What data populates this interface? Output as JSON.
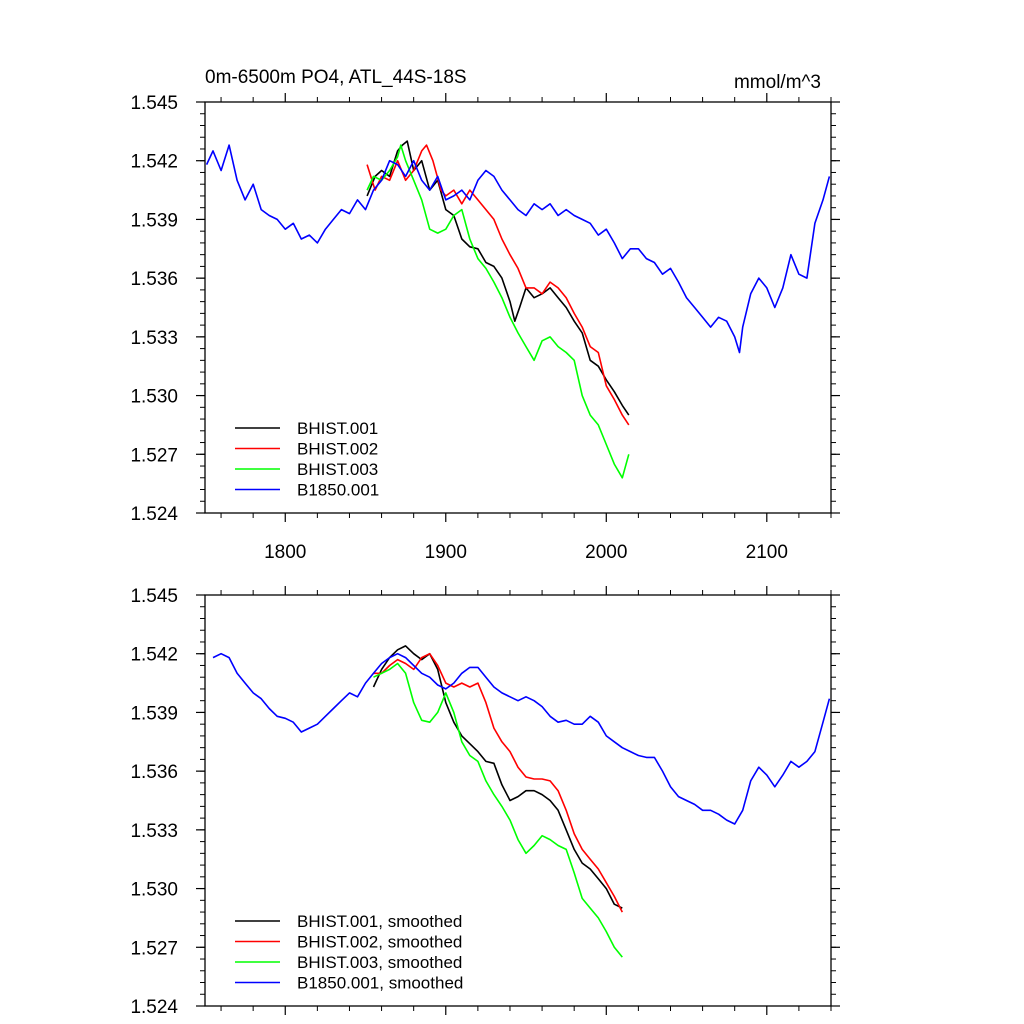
{
  "chart_data": [
    {
      "type": "line",
      "title": "0m-6500m PO4, ATL_44S-18S",
      "units": "mmol/m^3",
      "xlim": [
        1750,
        2140
      ],
      "ylim": [
        1.524,
        1.545
      ],
      "xticks": [
        1800,
        1900,
        2000,
        2100
      ],
      "yticks": [
        1.524,
        1.527,
        1.53,
        1.533,
        1.536,
        1.539,
        1.542,
        1.545
      ],
      "ytick_labels": [
        "1.524",
        "1.527",
        "1.530",
        "1.533",
        "1.536",
        "1.539",
        "1.542",
        "1.545"
      ],
      "xtick_labels": [
        "1800",
        "1900",
        "2000",
        "2100"
      ],
      "legend_position": "bottom-left",
      "series": [
        {
          "name": "BHIST.001",
          "color": "#000000",
          "x": [
            1851,
            1856,
            1860,
            1865,
            1870,
            1873,
            1876,
            1880,
            1885,
            1890,
            1895,
            1900,
            1905,
            1910,
            1915,
            1920,
            1925,
            1930,
            1935,
            1940,
            1943,
            1946,
            1950,
            1955,
            1960,
            1965,
            1970,
            1975,
            1980,
            1985,
            1990,
            1995,
            2000,
            2005,
            2010,
            2014
          ],
          "y": [
            1.5402,
            1.5412,
            1.5415,
            1.5412,
            1.5425,
            1.5428,
            1.543,
            1.5415,
            1.542,
            1.5405,
            1.541,
            1.5395,
            1.5392,
            1.538,
            1.5376,
            1.5375,
            1.5368,
            1.5366,
            1.536,
            1.5348,
            1.5338,
            1.5345,
            1.5355,
            1.535,
            1.5352,
            1.5355,
            1.535,
            1.5345,
            1.5338,
            1.5332,
            1.5318,
            1.5315,
            1.5308,
            1.5302,
            1.5295,
            1.529
          ]
        },
        {
          "name": "BHIST.002",
          "color": "#ff0000",
          "x": [
            1851,
            1856,
            1860,
            1865,
            1870,
            1875,
            1880,
            1885,
            1888,
            1892,
            1897,
            1900,
            1905,
            1910,
            1915,
            1920,
            1925,
            1930,
            1935,
            1940,
            1945,
            1950,
            1955,
            1960,
            1965,
            1970,
            1975,
            1980,
            1985,
            1990,
            1995,
            2000,
            2005,
            2010,
            2014
          ],
          "y": [
            1.5418,
            1.5405,
            1.5412,
            1.541,
            1.542,
            1.541,
            1.5415,
            1.5425,
            1.5428,
            1.542,
            1.5405,
            1.5402,
            1.5405,
            1.5398,
            1.5405,
            1.54,
            1.5395,
            1.539,
            1.538,
            1.5372,
            1.5365,
            1.5355,
            1.5355,
            1.5352,
            1.5358,
            1.5355,
            1.535,
            1.5342,
            1.5335,
            1.5325,
            1.5322,
            1.5305,
            1.5298,
            1.529,
            1.5285
          ]
        },
        {
          "name": "BHIST.003",
          "color": "#00ff00",
          "x": [
            1851,
            1855,
            1860,
            1865,
            1870,
            1872,
            1875,
            1880,
            1885,
            1890,
            1895,
            1900,
            1905,
            1910,
            1915,
            1920,
            1925,
            1930,
            1935,
            1940,
            1945,
            1950,
            1955,
            1960,
            1965,
            1970,
            1975,
            1980,
            1985,
            1990,
            1995,
            2000,
            2005,
            2010,
            2014
          ],
          "y": [
            1.5405,
            1.5412,
            1.541,
            1.5415,
            1.5422,
            1.5428,
            1.542,
            1.541,
            1.54,
            1.5385,
            1.5383,
            1.5385,
            1.5392,
            1.5395,
            1.538,
            1.537,
            1.5365,
            1.5358,
            1.535,
            1.534,
            1.5332,
            1.5325,
            1.5318,
            1.5328,
            1.533,
            1.5325,
            1.5322,
            1.5318,
            1.53,
            1.529,
            1.5285,
            1.5275,
            1.5265,
            1.5258,
            1.527
          ]
        },
        {
          "name": "B1850.001",
          "color": "#0000ff",
          "x": [
            1751,
            1755,
            1760,
            1765,
            1770,
            1775,
            1780,
            1785,
            1790,
            1795,
            1800,
            1805,
            1810,
            1815,
            1820,
            1825,
            1830,
            1835,
            1840,
            1845,
            1850,
            1855,
            1860,
            1865,
            1870,
            1875,
            1880,
            1885,
            1890,
            1895,
            1900,
            1905,
            1910,
            1915,
            1920,
            1925,
            1930,
            1935,
            1940,
            1945,
            1950,
            1955,
            1960,
            1965,
            1970,
            1975,
            1980,
            1985,
            1990,
            1995,
            2000,
            2005,
            2010,
            2015,
            2020,
            2025,
            2030,
            2035,
            2040,
            2045,
            2050,
            2055,
            2060,
            2065,
            2070,
            2075,
            2080,
            2083,
            2085,
            2090,
            2095,
            2100,
            2105,
            2110,
            2115,
            2120,
            2125,
            2130,
            2135,
            2139
          ],
          "y": [
            1.5418,
            1.5425,
            1.5415,
            1.5428,
            1.541,
            1.54,
            1.5408,
            1.5395,
            1.5392,
            1.539,
            1.5385,
            1.5388,
            1.538,
            1.5382,
            1.5378,
            1.5385,
            1.539,
            1.5395,
            1.5393,
            1.54,
            1.5395,
            1.5405,
            1.541,
            1.542,
            1.5418,
            1.5412,
            1.542,
            1.541,
            1.5405,
            1.5412,
            1.54,
            1.5402,
            1.5405,
            1.54,
            1.541,
            1.5415,
            1.5412,
            1.5405,
            1.54,
            1.5395,
            1.5392,
            1.5398,
            1.5395,
            1.5398,
            1.5392,
            1.5395,
            1.5392,
            1.539,
            1.5388,
            1.5382,
            1.5385,
            1.5378,
            1.537,
            1.5375,
            1.5375,
            1.537,
            1.5368,
            1.5362,
            1.5365,
            1.5358,
            1.535,
            1.5345,
            1.534,
            1.5335,
            1.534,
            1.5338,
            1.533,
            1.5322,
            1.5335,
            1.5352,
            1.536,
            1.5355,
            1.5345,
            1.5355,
            1.5372,
            1.5362,
            1.536,
            1.5388,
            1.54,
            1.5412
          ]
        }
      ]
    },
    {
      "type": "line",
      "title": "",
      "xlim": [
        1750,
        2140
      ],
      "ylim": [
        1.524,
        1.545
      ],
      "xticks": [
        1800,
        1900,
        2000,
        2100
      ],
      "yticks": [
        1.524,
        1.527,
        1.53,
        1.533,
        1.536,
        1.539,
        1.542,
        1.545
      ],
      "ytick_labels": [
        "1.524",
        "1.527",
        "1.530",
        "1.533",
        "1.536",
        "1.539",
        "1.542",
        "1.545"
      ],
      "legend_position": "bottom-left",
      "series": [
        {
          "name": "BHIST.001, smoothed",
          "color": "#000000",
          "x": [
            1855,
            1860,
            1865,
            1870,
            1875,
            1880,
            1885,
            1890,
            1895,
            1900,
            1905,
            1910,
            1915,
            1920,
            1925,
            1930,
            1935,
            1940,
            1945,
            1950,
            1955,
            1960,
            1965,
            1970,
            1975,
            1980,
            1985,
            1990,
            1995,
            2000,
            2005,
            2010
          ],
          "y": [
            1.5403,
            1.5412,
            1.5418,
            1.5422,
            1.5424,
            1.542,
            1.5417,
            1.542,
            1.5412,
            1.5395,
            1.5385,
            1.5378,
            1.5374,
            1.537,
            1.5365,
            1.5364,
            1.5353,
            1.5345,
            1.5347,
            1.535,
            1.535,
            1.5348,
            1.5345,
            1.534,
            1.533,
            1.532,
            1.5313,
            1.531,
            1.5305,
            1.53,
            1.5292,
            1.529
          ]
        },
        {
          "name": "BHIST.002, smoothed",
          "color": "#ff0000",
          "x": [
            1855,
            1860,
            1865,
            1870,
            1875,
            1880,
            1885,
            1890,
            1895,
            1900,
            1905,
            1910,
            1915,
            1920,
            1925,
            1930,
            1935,
            1940,
            1945,
            1950,
            1955,
            1960,
            1965,
            1970,
            1975,
            1980,
            1985,
            1990,
            1995,
            2000,
            2005,
            2010
          ],
          "y": [
            1.541,
            1.541,
            1.5414,
            1.5417,
            1.5415,
            1.5412,
            1.5418,
            1.542,
            1.5414,
            1.5405,
            1.5403,
            1.5405,
            1.5403,
            1.5405,
            1.5395,
            1.5382,
            1.5375,
            1.537,
            1.5362,
            1.5357,
            1.5356,
            1.5356,
            1.5355,
            1.535,
            1.534,
            1.5328,
            1.532,
            1.5315,
            1.531,
            1.5303,
            1.5296,
            1.5288
          ]
        },
        {
          "name": "BHIST.003, smoothed",
          "color": "#00ff00",
          "x": [
            1855,
            1860,
            1865,
            1870,
            1875,
            1880,
            1885,
            1890,
            1895,
            1900,
            1905,
            1910,
            1915,
            1920,
            1925,
            1930,
            1935,
            1940,
            1945,
            1950,
            1955,
            1960,
            1965,
            1970,
            1975,
            1980,
            1985,
            1990,
            1995,
            2000,
            2005,
            2010
          ],
          "y": [
            1.5408,
            1.541,
            1.5412,
            1.5415,
            1.541,
            1.5395,
            1.5386,
            1.5385,
            1.539,
            1.54,
            1.539,
            1.5375,
            1.5368,
            1.5365,
            1.5355,
            1.5348,
            1.5342,
            1.5335,
            1.5325,
            1.5318,
            1.5322,
            1.5327,
            1.5325,
            1.5322,
            1.532,
            1.5308,
            1.5295,
            1.529,
            1.5285,
            1.5278,
            1.527,
            1.5265
          ]
        },
        {
          "name": "B1850.001, smoothed",
          "color": "#0000ff",
          "x": [
            1755,
            1760,
            1765,
            1770,
            1775,
            1780,
            1785,
            1790,
            1795,
            1800,
            1805,
            1810,
            1815,
            1820,
            1825,
            1830,
            1835,
            1840,
            1845,
            1850,
            1855,
            1860,
            1865,
            1870,
            1875,
            1880,
            1885,
            1890,
            1895,
            1900,
            1905,
            1910,
            1915,
            1920,
            1925,
            1930,
            1935,
            1940,
            1945,
            1950,
            1955,
            1960,
            1965,
            1970,
            1975,
            1980,
            1985,
            1990,
            1995,
            2000,
            2005,
            2010,
            2015,
            2020,
            2025,
            2030,
            2035,
            2040,
            2045,
            2050,
            2055,
            2060,
            2065,
            2070,
            2075,
            2080,
            2085,
            2090,
            2095,
            2100,
            2105,
            2110,
            2115,
            2120,
            2125,
            2130,
            2135,
            2139
          ],
          "y": [
            1.5418,
            1.542,
            1.5418,
            1.541,
            1.5405,
            1.54,
            1.5397,
            1.5392,
            1.5388,
            1.5387,
            1.5385,
            1.538,
            1.5382,
            1.5384,
            1.5388,
            1.5392,
            1.5396,
            1.54,
            1.5398,
            1.5405,
            1.541,
            1.5415,
            1.5418,
            1.542,
            1.5418,
            1.5414,
            1.541,
            1.5408,
            1.5404,
            1.5402,
            1.5405,
            1.541,
            1.5413,
            1.5413,
            1.5408,
            1.5403,
            1.54,
            1.5398,
            1.5396,
            1.5398,
            1.5396,
            1.5393,
            1.5388,
            1.5385,
            1.5386,
            1.5384,
            1.5384,
            1.5388,
            1.5385,
            1.5378,
            1.5375,
            1.5372,
            1.537,
            1.5368,
            1.5367,
            1.5367,
            1.536,
            1.5352,
            1.5347,
            1.5345,
            1.5343,
            1.534,
            1.534,
            1.5338,
            1.5335,
            1.5333,
            1.534,
            1.5355,
            1.5362,
            1.5358,
            1.5352,
            1.5358,
            1.5365,
            1.5362,
            1.5365,
            1.537,
            1.5385,
            1.5397
          ]
        }
      ]
    }
  ]
}
